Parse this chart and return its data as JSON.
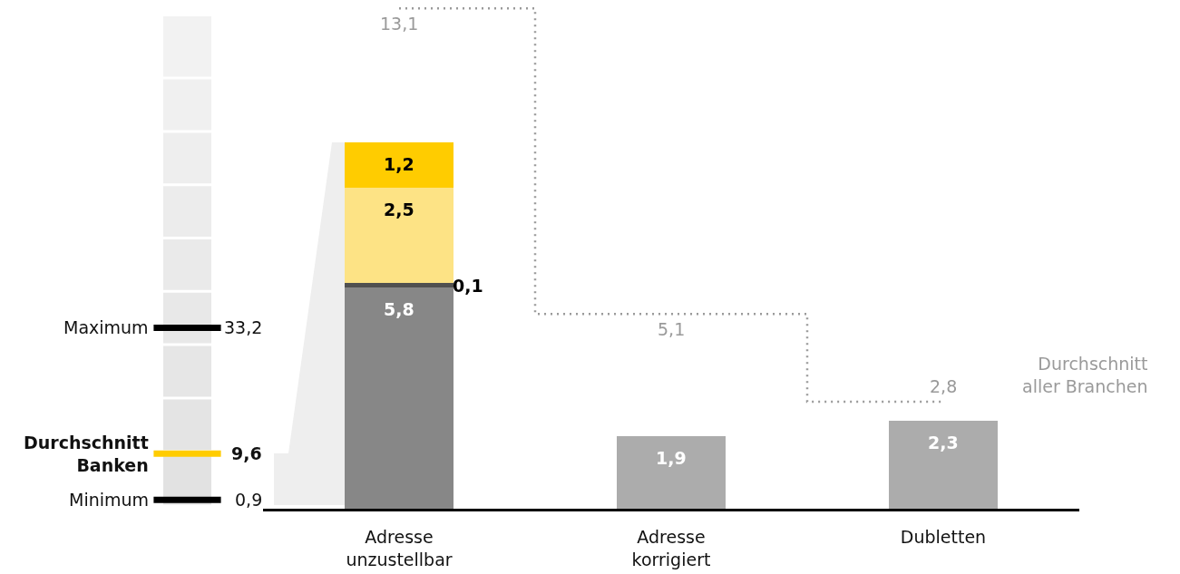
{
  "chart_data": [
    {
      "type": "other",
      "categories": [
        "Maximum",
        "Durchschnitt Banken",
        "Minimum"
      ],
      "values": [
        33.2,
        9.6,
        0.9
      ],
      "colors": [
        "#000000",
        "#ffcc00",
        "#000000"
      ],
      "value_labels": [
        "33,2",
        "9,6",
        "0,9"
      ]
    },
    {
      "type": "bar",
      "stacked": true,
      "categories": [
        "Adresse unzustellbar",
        "Adresse korrigiert",
        "Dubletten"
      ],
      "ylim": [
        0,
        13.2
      ],
      "tick_labels": "x",
      "series": [
        {
          "values": [
            5.8,
            1.9,
            2.3
          ],
          "colors": [
            "#878787",
            "#acacac",
            "#acacac"
          ],
          "value_labels": [
            "5,8",
            "1,9",
            "2,3"
          ]
        },
        {
          "values": [
            0.1,
            null,
            null
          ],
          "color": "#505050",
          "value_labels": [
            "0,1",
            null,
            null
          ]
        },
        {
          "values": [
            2.5,
            null,
            null
          ],
          "color": "#fde385",
          "value_labels": [
            "2,5",
            null,
            null
          ]
        },
        {
          "values": [
            1.2,
            null,
            null
          ],
          "color": "#ffcc00",
          "value_labels": [
            "1,2",
            null,
            null
          ]
        },
        {
          "type": "step",
          "name": "Durchschnitt aller Branchen",
          "values": [
            13.1,
            5.1,
            2.8
          ],
          "color": "#9a9a9a",
          "line_style": "dotted",
          "value_labels": [
            "13,1",
            "5,1",
            "2,8"
          ]
        }
      ]
    }
  ]
}
